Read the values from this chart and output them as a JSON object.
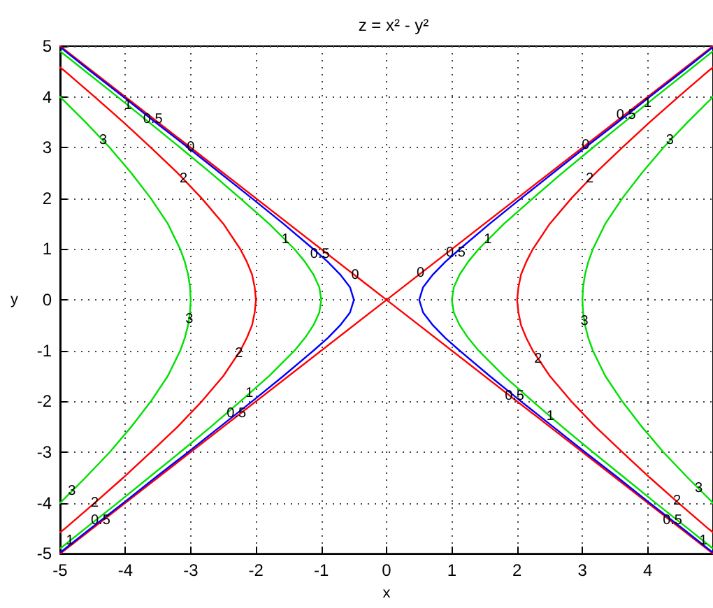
{
  "chart_data": {
    "type": "line",
    "title": "z = x² - y²",
    "xlabel": "x",
    "ylabel": "y",
    "xlim": [
      -5,
      5
    ],
    "ylim": [
      -5,
      5
    ],
    "xticks": [
      -5,
      -4,
      -3,
      -2,
      -1,
      0,
      1,
      2,
      3,
      4
    ],
    "yticks": [
      -5,
      -4,
      -3,
      -2,
      -1,
      0,
      1,
      2,
      3,
      4,
      5
    ],
    "grid": true,
    "marker": "none",
    "line_style": "solid",
    "series": [
      {
        "color": "#ff0000",
        "x": [
          -5,
          0,
          5,
          null,
          -5,
          0,
          5
        ],
        "values": [
          -5,
          0,
          5,
          null,
          5,
          0,
          -5
        ]
      },
      {
        "color": "#0000ff",
        "x": [
          4.99,
          4.53,
          4.03,
          3.54,
          3.04,
          2.55,
          2.06,
          1.58,
          1.12,
          0.9,
          0.71,
          0.56,
          0.5,
          0.56,
          0.71,
          0.9,
          1.12,
          1.58,
          2.06,
          2.55,
          3.04,
          3.54,
          4.03,
          4.53,
          4.99,
          null,
          -4.99,
          -4.53,
          -4.03,
          -3.54,
          -3.04,
          -2.55,
          -2.06,
          -1.58,
          -1.12,
          -0.9,
          -0.71,
          -0.56,
          -0.5,
          -0.56,
          -0.71,
          -0.9,
          -1.12,
          -1.58,
          -2.06,
          -2.55,
          -3.04,
          -3.54,
          -4.03,
          -4.53,
          -4.99
        ],
        "values": [
          -4.97,
          -4.5,
          -4,
          -3.5,
          -3,
          -2.5,
          -2,
          -1.5,
          -1,
          -0.75,
          -0.5,
          -0.25,
          0,
          0.25,
          0.5,
          0.75,
          1,
          1.5,
          2,
          2.5,
          3,
          3.5,
          4,
          4.5,
          4.97,
          null,
          -4.97,
          -4.5,
          -4,
          -3.5,
          -3,
          -2.5,
          -2,
          -1.5,
          -1,
          -0.75,
          -0.5,
          -0.25,
          0,
          0.25,
          0.5,
          0.75,
          1,
          1.5,
          2,
          2.5,
          3,
          3.5,
          4,
          4.5,
          4.97
        ]
      },
      {
        "color": "#00e000",
        "x": [
          4.99,
          4.61,
          4.12,
          3.64,
          3.16,
          2.69,
          2.24,
          1.8,
          1.41,
          1.25,
          1.12,
          1.03,
          1,
          1.03,
          1.12,
          1.25,
          1.41,
          1.8,
          2.24,
          2.69,
          3.16,
          3.64,
          4.12,
          4.61,
          4.99,
          null,
          -4.99,
          -4.61,
          -4.12,
          -3.64,
          -3.16,
          -2.69,
          -2.24,
          -1.8,
          -1.41,
          -1.25,
          -1.12,
          -1.03,
          -1,
          -1.03,
          -1.12,
          -1.25,
          -1.41,
          -1.8,
          -2.24,
          -2.69,
          -3.16,
          -3.64,
          -4.12,
          -4.61,
          -4.99
        ],
        "values": [
          -4.89,
          -4.5,
          -4,
          -3.5,
          -3,
          -2.5,
          -2,
          -1.5,
          -1,
          -0.75,
          -0.5,
          -0.25,
          0,
          0.25,
          0.5,
          0.75,
          1,
          1.5,
          2,
          2.5,
          3,
          3.5,
          4,
          4.5,
          4.89,
          null,
          -4.89,
          -4.5,
          -4,
          -3.5,
          -3,
          -2.5,
          -2,
          -1.5,
          -1,
          -0.75,
          -0.5,
          -0.25,
          0,
          0.25,
          0.5,
          0.75,
          1,
          1.5,
          2,
          2.5,
          3,
          3.5,
          4,
          4.5,
          4.89
        ]
      },
      {
        "color": "#ff0000",
        "x": [
          5,
          4.92,
          4.47,
          4.03,
          3.61,
          3.2,
          2.83,
          2.5,
          2.24,
          2.14,
          2.06,
          2.02,
          2,
          2.02,
          2.06,
          2.14,
          2.24,
          2.5,
          2.83,
          3.2,
          3.61,
          4.03,
          4.47,
          4.92,
          5,
          null,
          -5,
          -4.92,
          -4.47,
          -4.03,
          -3.61,
          -3.2,
          -2.83,
          -2.5,
          -2.24,
          -2.14,
          -2.06,
          -2.02,
          -2,
          -2.02,
          -2.06,
          -2.14,
          -2.24,
          -2.5,
          -2.83,
          -3.2,
          -3.61,
          -4.03,
          -4.47,
          -4.92,
          -5
        ],
        "values": [
          -4.58,
          -4.5,
          -4,
          -3.5,
          -3,
          -2.5,
          -2,
          -1.5,
          -1,
          -0.75,
          -0.5,
          -0.25,
          0,
          0.25,
          0.5,
          0.75,
          1,
          1.5,
          2,
          2.5,
          3,
          3.5,
          4,
          4.5,
          4.58,
          null,
          -4.58,
          -4.5,
          -4,
          -3.5,
          -3,
          -2.5,
          -2,
          -1.5,
          -1,
          -0.75,
          -0.5,
          -0.25,
          0,
          0.25,
          0.5,
          0.75,
          1,
          1.5,
          2,
          2.5,
          3,
          3.5,
          4,
          4.5,
          4.58
        ]
      },
      {
        "color": "#00e000",
        "x": [
          5,
          4.61,
          4.24,
          3.91,
          3.61,
          3.35,
          3.16,
          3.09,
          3.04,
          3.01,
          3,
          3.01,
          3.04,
          3.09,
          3.16,
          3.35,
          3.61,
          3.91,
          4.24,
          4.61,
          5,
          null,
          -5,
          -4.61,
          -4.24,
          -3.91,
          -3.61,
          -3.35,
          -3.16,
          -3.09,
          -3.04,
          -3.01,
          -3,
          -3.01,
          -3.04,
          -3.09,
          -3.16,
          -3.35,
          -3.61,
          -3.91,
          -4.24,
          -4.61,
          -5
        ],
        "values": [
          -4,
          -3.5,
          -3,
          -2.5,
          -2,
          -1.5,
          -1,
          -0.75,
          -0.5,
          -0.25,
          0,
          0.25,
          0.5,
          0.75,
          1,
          1.5,
          2,
          2.5,
          3,
          3.5,
          4,
          null,
          -4,
          -3.5,
          -3,
          -2.5,
          -2,
          -1.5,
          -1,
          -0.75,
          -0.5,
          -0.25,
          0,
          0.25,
          0.5,
          0.75,
          1,
          1.5,
          2,
          2.5,
          3,
          3.5,
          4
        ]
      }
    ],
    "annotations": [
      {
        "text": "1",
        "x": -3.96,
        "y": 3.83
      },
      {
        "text": "0.5",
        "x": -3.58,
        "y": 3.55
      },
      {
        "text": "0",
        "x": -3,
        "y": 3
      },
      {
        "text": "3",
        "x": -4.34,
        "y": 3.14
      },
      {
        "text": "2",
        "x": -3.11,
        "y": 2.38
      },
      {
        "text": "1",
        "x": -1.55,
        "y": 1.18
      },
      {
        "text": "0.5",
        "x": -1.02,
        "y": 0.89
      },
      {
        "text": "0",
        "x": -0.48,
        "y": 0.48
      },
      {
        "text": "3",
        "x": -3.02,
        "y": -0.38
      },
      {
        "text": "2",
        "x": -2.26,
        "y": -1.06
      },
      {
        "text": "1",
        "x": -2.1,
        "y": -1.85
      },
      {
        "text": "0.5",
        "x": -2.3,
        "y": -2.25
      },
      {
        "text": "3",
        "x": -4.82,
        "y": -3.77
      },
      {
        "text": "2",
        "x": -4.47,
        "y": -4
      },
      {
        "text": "0.5",
        "x": -4.38,
        "y": -4.35
      },
      {
        "text": "1",
        "x": -4.85,
        "y": -4.75
      },
      {
        "text": "0",
        "x": 0.52,
        "y": 0.52
      },
      {
        "text": "0.5",
        "x": 1.06,
        "y": 0.93
      },
      {
        "text": "1",
        "x": 1.55,
        "y": 1.18
      },
      {
        "text": "2",
        "x": 3.11,
        "y": 2.38
      },
      {
        "text": "0",
        "x": 3.05,
        "y": 3.05
      },
      {
        "text": "0.5",
        "x": 3.67,
        "y": 3.64
      },
      {
        "text": "1",
        "x": 4,
        "y": 3.87
      },
      {
        "text": "3",
        "x": 4.34,
        "y": 3.14
      },
      {
        "text": "3",
        "x": 3.03,
        "y": -0.42
      },
      {
        "text": "2",
        "x": 2.32,
        "y": -1.17
      },
      {
        "text": "0.5",
        "x": 1.96,
        "y": -1.9
      },
      {
        "text": "1",
        "x": 2.51,
        "y": -2.3
      },
      {
        "text": "3",
        "x": 4.78,
        "y": -3.72
      },
      {
        "text": "2",
        "x": 4.45,
        "y": -3.96
      },
      {
        "text": "0.5",
        "x": 4.38,
        "y": -4.35
      },
      {
        "text": "1",
        "x": 4.85,
        "y": -4.75
      }
    ]
  }
}
